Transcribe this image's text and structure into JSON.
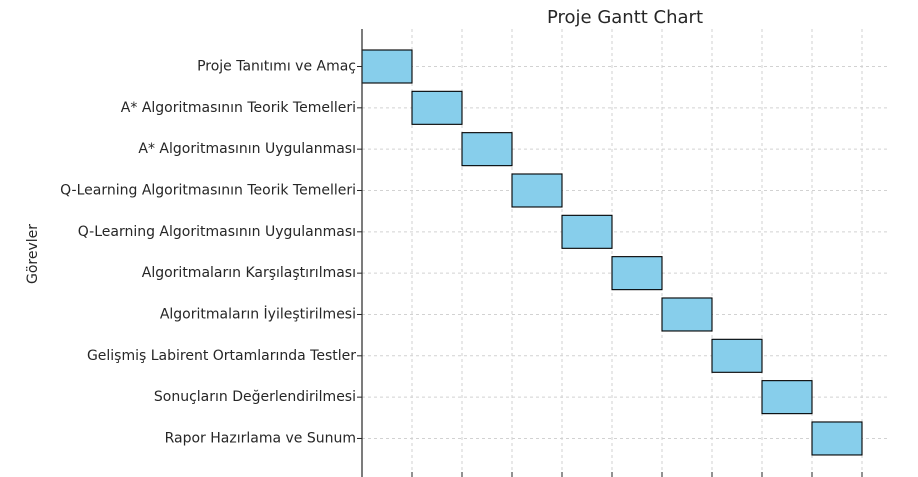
{
  "chart_data": {
    "type": "bar",
    "orientation": "horizontal",
    "title": "Proje Gantt Chart",
    "xlabel": "",
    "ylabel": "Görevler",
    "grid": true,
    "bar_color": "#87ceeb",
    "edge_color": "#000000",
    "categories": [
      "Proje Tanıtımı ve Amaç",
      "A* Algoritmasının Teorik Temelleri",
      "A* Algoritmasının Uygulanması",
      "Q-Learning Algoritmasının Teorik Temelleri",
      "Q-Learning Algoritmasının Uygulanması",
      "Algoritmaların Karşılaştırılması",
      "Algoritmaların İyileştirilmesi",
      "Gelişmiş Labirent Ortamlarında Testler",
      "Sonuçların Değerlendirilmesi",
      "Rapor Hazırlama ve Sunum"
    ],
    "start": [
      0,
      1,
      2,
      3,
      4,
      5,
      6,
      7,
      8,
      9
    ],
    "duration": [
      1,
      1,
      1,
      1,
      1,
      1,
      1,
      1,
      1,
      1
    ],
    "xlim": [
      0,
      10.5
    ],
    "x_ticks": [
      0,
      1,
      2,
      3,
      4,
      5,
      6,
      7,
      8,
      9,
      10
    ]
  }
}
